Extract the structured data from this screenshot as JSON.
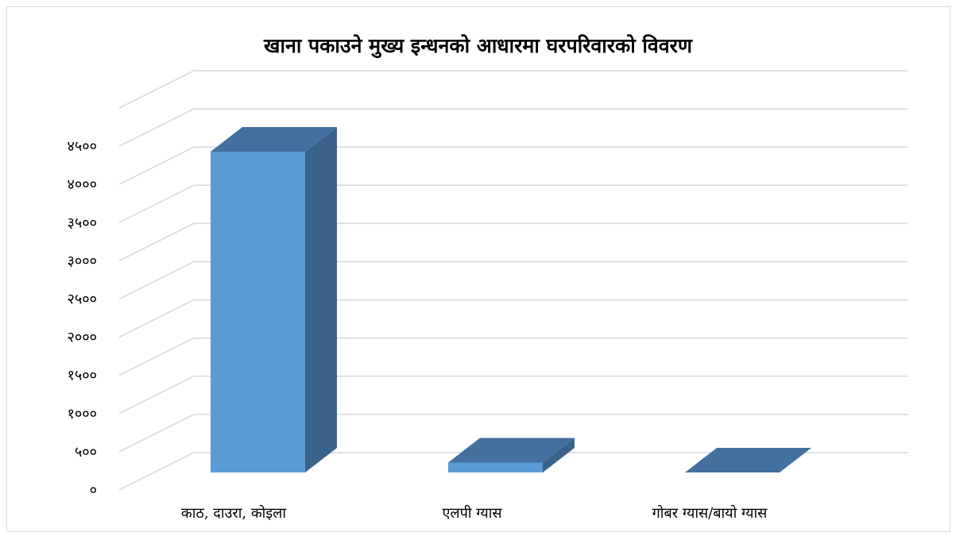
{
  "chart_data": {
    "type": "bar",
    "style": "3d-column",
    "title": "खाना पकाउने मुख्य इन्धनको आधारमा घरपरिवारको विवरण",
    "categories": [
      "काठ, दाउरा, कोइला",
      "एलपी ग्यास",
      "गोबर ग्यास/बायो ग्यास"
    ],
    "values": [
      4200,
      130,
      0
    ],
    "ylim": [
      0,
      4500
    ],
    "yticks": [
      0,
      500,
      1000,
      1500,
      2000,
      2500,
      3000,
      3500,
      4000,
      4500
    ],
    "ytick_labels": [
      "०",
      "५००",
      "१०००",
      "१५००",
      "२०००",
      "२५००",
      "३०००",
      "३५००",
      "४०००",
      "४५००"
    ],
    "grid": true,
    "legend": "none",
    "colors": {
      "front": "#5b9bd5",
      "top": "#44709f",
      "side": "#3b6389",
      "grid": "#d9d9d9"
    }
  }
}
